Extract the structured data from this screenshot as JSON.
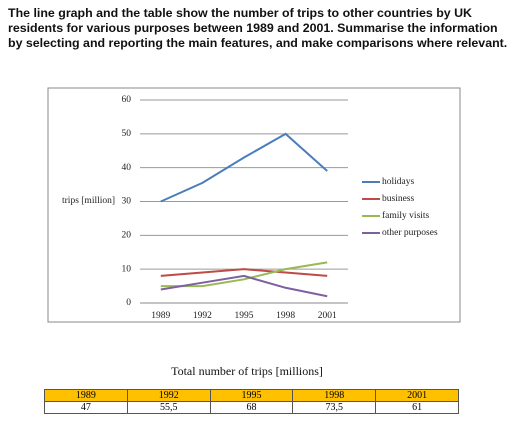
{
  "prompt": "The line graph and the table show the number of trips to other countries by UK residents for various purposes between 1989 and 2001. Summarise the information by selecting and reporting the main features, and make comparisons where relevant.",
  "chart_data": {
    "type": "line",
    "y_label": "trips [million]",
    "categories": [
      "1989",
      "1992",
      "1995",
      "1998",
      "2001"
    ],
    "series": [
      {
        "name": "holidays",
        "color": "#4a7ebb",
        "values": [
          30,
          35.5,
          43,
          50,
          39
        ]
      },
      {
        "name": "business",
        "color": "#be4b48",
        "values": [
          8,
          9,
          10,
          9,
          8
        ]
      },
      {
        "name": "family visits",
        "color": "#98b954",
        "values": [
          5,
          5,
          7,
          10,
          12
        ]
      },
      {
        "name": "other purposes",
        "color": "#7d60a0",
        "values": [
          4,
          6,
          8,
          4.5,
          2
        ]
      }
    ],
    "ylim": [
      0,
      60
    ],
    "yticks": [
      0,
      10,
      20,
      30,
      40,
      50,
      60
    ],
    "grid": true,
    "legend": "right"
  },
  "table": {
    "title": "Total number of trips [millions]",
    "header": [
      "1989",
      "1992",
      "1995",
      "1998",
      "2001"
    ],
    "rows": [
      [
        "47",
        "55,5",
        "68",
        "73,5",
        "61"
      ]
    ]
  }
}
